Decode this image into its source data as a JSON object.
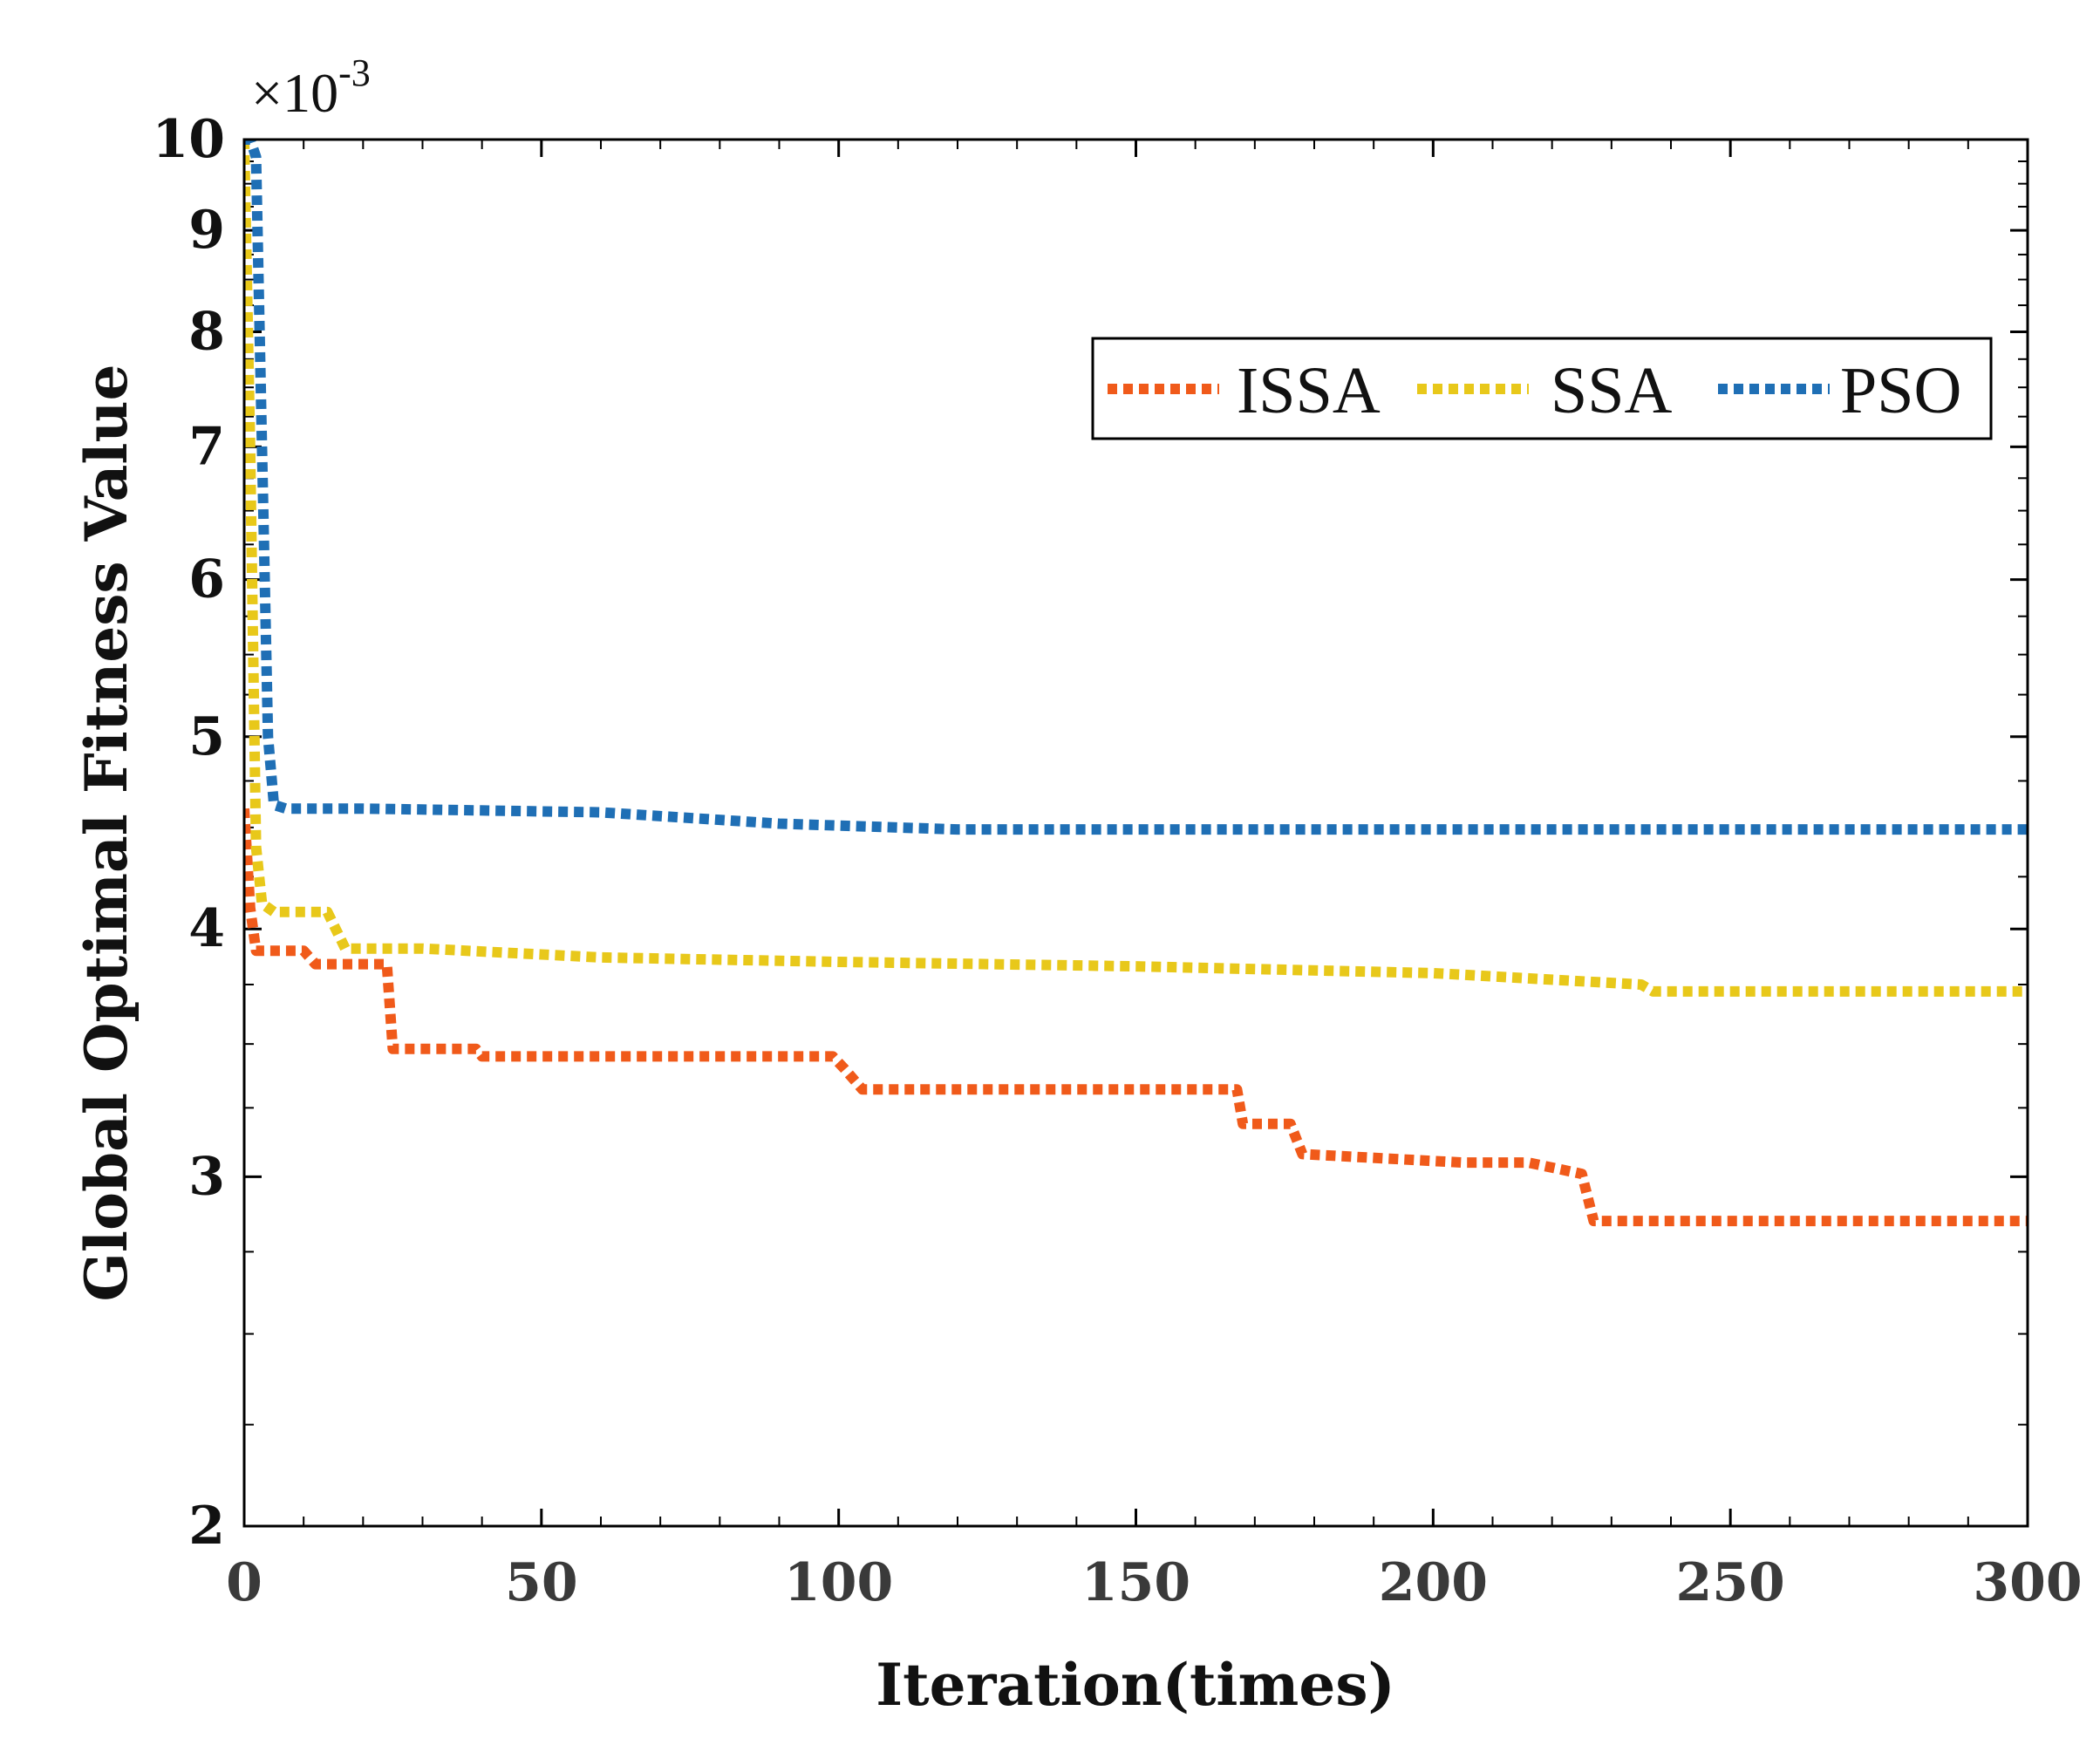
{
  "chart_data": {
    "type": "line",
    "title": "",
    "xlabel": "Iteration(times)",
    "ylabel": "Global Optimal Fitness Value",
    "y_scale": "log",
    "y_multiplier_base": "×10",
    "y_multiplier_exp": "-3",
    "xlim": [
      0,
      300
    ],
    "ylim": [
      2,
      10
    ],
    "x_ticks": [
      0,
      50,
      100,
      150,
      200,
      250,
      300
    ],
    "x_tick_labels": [
      "0",
      "50",
      "100",
      "150",
      "200",
      "250",
      "300"
    ],
    "y_ticks": [
      2,
      3,
      4,
      5,
      6,
      7,
      8,
      9,
      10
    ],
    "y_tick_labels": [
      "2",
      "3",
      "4",
      "5",
      "6",
      "7",
      "8",
      "9",
      "10"
    ],
    "legend_position": "top-right",
    "series": [
      {
        "name": "ISSA",
        "color": "#F05A1A",
        "points": [
          [
            0,
            4.6
          ],
          [
            1,
            4.1
          ],
          [
            2,
            3.9
          ],
          [
            10,
            3.9
          ],
          [
            12,
            3.84
          ],
          [
            24,
            3.84
          ],
          [
            25,
            3.48
          ],
          [
            39,
            3.48
          ],
          [
            40,
            3.45
          ],
          [
            99,
            3.45
          ],
          [
            101,
            3.4
          ],
          [
            104,
            3.32
          ],
          [
            167,
            3.32
          ],
          [
            168,
            3.19
          ],
          [
            176,
            3.19
          ],
          [
            178,
            3.08
          ],
          [
            205,
            3.05
          ],
          [
            216,
            3.05
          ],
          [
            225,
            3.01
          ],
          [
            227,
            2.85
          ],
          [
            300,
            2.85
          ]
        ]
      },
      {
        "name": "SSA",
        "color": "#E8C81A",
        "points": [
          [
            0,
            10
          ],
          [
            1,
            7.0
          ],
          [
            2,
            4.4
          ],
          [
            3,
            4.12
          ],
          [
            5,
            4.08
          ],
          [
            14,
            4.08
          ],
          [
            17,
            3.91
          ],
          [
            30,
            3.91
          ],
          [
            60,
            3.87
          ],
          [
            100,
            3.85
          ],
          [
            150,
            3.83
          ],
          [
            200,
            3.8
          ],
          [
            235,
            3.75
          ],
          [
            237,
            3.72
          ],
          [
            300,
            3.72
          ]
        ]
      },
      {
        "name": "PSO",
        "color": "#1F6FB5",
        "points": [
          [
            0,
            10
          ],
          [
            1,
            10
          ],
          [
            2,
            9.8
          ],
          [
            3,
            7.0
          ],
          [
            4,
            5.0
          ],
          [
            5,
            4.62
          ],
          [
            7,
            4.6
          ],
          [
            20,
            4.6
          ],
          [
            60,
            4.58
          ],
          [
            90,
            4.52
          ],
          [
            120,
            4.49
          ],
          [
            300,
            4.49
          ]
        ]
      }
    ]
  }
}
